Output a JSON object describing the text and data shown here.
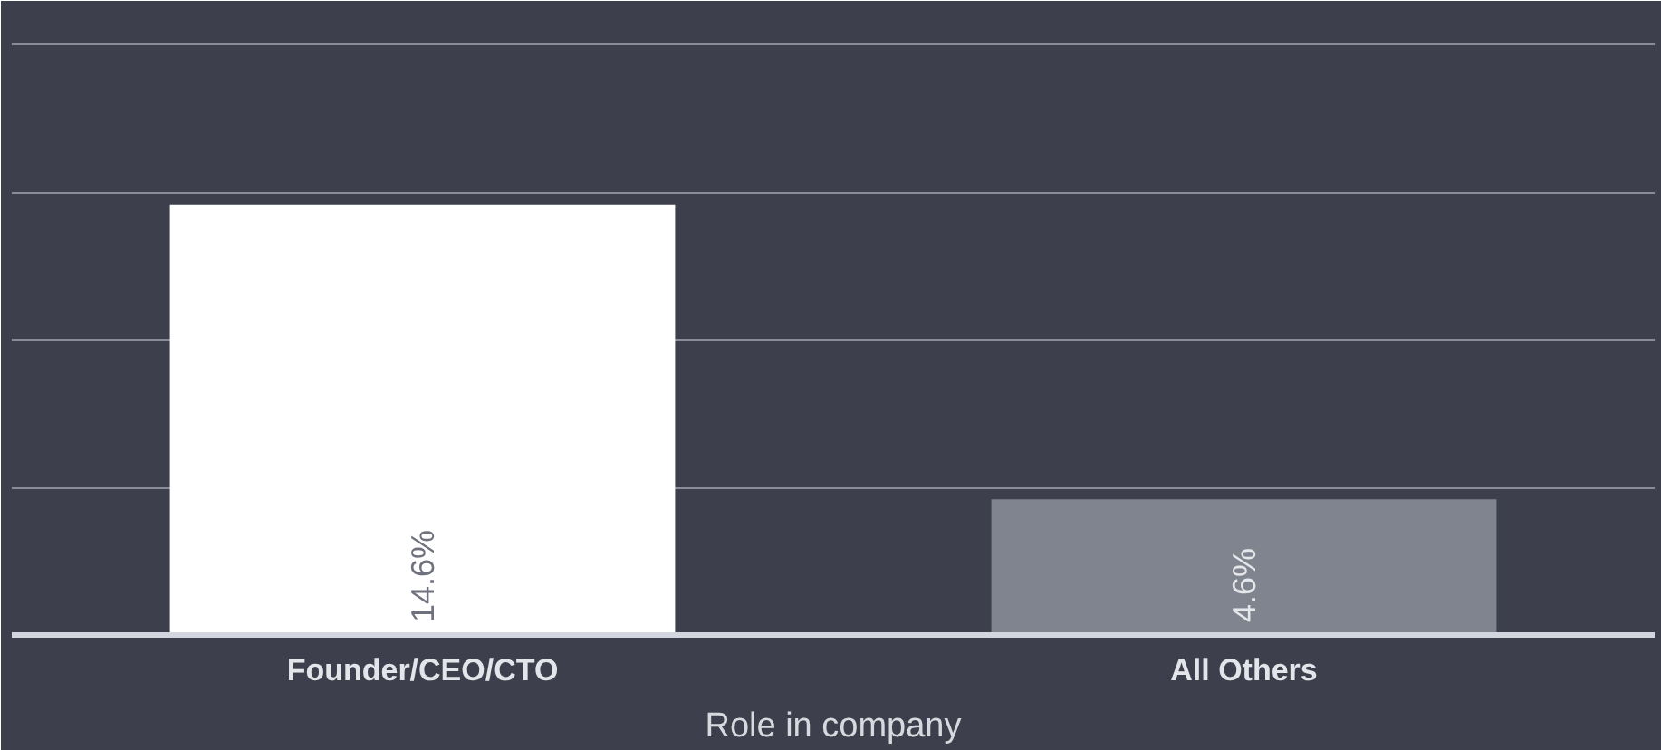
{
  "chart_data": {
    "type": "bar",
    "categories": [
      "Founder/CEO/CTO",
      "All Others"
    ],
    "values": [
      14.6,
      4.6
    ],
    "colors": [
      "#ffffff",
      "#80848e"
    ],
    "value_labels": [
      "14.6%",
      "4.6%"
    ],
    "xlabel": "Role in company",
    "ylim": [
      0,
      21.5
    ],
    "yticks": [
      {
        "value": 5,
        "label": null
      },
      {
        "value": 10,
        "label": null
      },
      {
        "value": 15,
        "label": null
      },
      {
        "value": 20,
        "label": null
      }
    ],
    "grid": "y",
    "tick_labels": "x"
  }
}
